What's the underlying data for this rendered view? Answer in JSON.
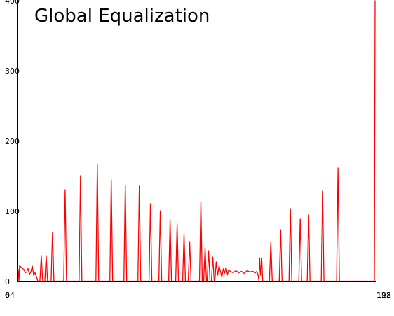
{
  "chart_data": {
    "type": "line",
    "title": "Global Equalization",
    "xlabel": "",
    "ylabel": "",
    "xlim": [
      0,
      256
    ],
    "ylim": [
      0,
      400
    ],
    "y_ticks": [
      0,
      100,
      200,
      300,
      400
    ],
    "x_tick_labels": [
      "0",
      "64",
      "128",
      "192"
    ],
    "grid": false,
    "axis_color": "#000000",
    "series": [
      {
        "color": "#ff0000",
        "points": [
          [
            0,
            0
          ],
          [
            0.5,
            17
          ],
          [
            1,
            0
          ],
          [
            1.5,
            22
          ],
          [
            3,
            19
          ],
          [
            4.5,
            17
          ],
          [
            5.5,
            12
          ],
          [
            6.5,
            13
          ],
          [
            7.5,
            18
          ],
          [
            8.5,
            10
          ],
          [
            9.5,
            13
          ],
          [
            10.5,
            22
          ],
          [
            11.5,
            9
          ],
          [
            12.5,
            12
          ],
          [
            13.5,
            7
          ],
          [
            14.5,
            0
          ],
          [
            16,
            0
          ],
          [
            17,
            37
          ],
          [
            18,
            0
          ],
          [
            19.5,
            0
          ],
          [
            20.5,
            37
          ],
          [
            21.5,
            0
          ],
          [
            24,
            0
          ],
          [
            25,
            70
          ],
          [
            26,
            0
          ],
          [
            33,
            0
          ],
          [
            34,
            131
          ],
          [
            35,
            0
          ],
          [
            44,
            0
          ],
          [
            45,
            151
          ],
          [
            46,
            0
          ],
          [
            56,
            0
          ],
          [
            57,
            167
          ],
          [
            58,
            0
          ],
          [
            66,
            0
          ],
          [
            67,
            145
          ],
          [
            68,
            0
          ],
          [
            76,
            0
          ],
          [
            77,
            137
          ],
          [
            78,
            0
          ],
          [
            86,
            0
          ],
          [
            87,
            136
          ],
          [
            88,
            0
          ],
          [
            94,
            0
          ],
          [
            95,
            111
          ],
          [
            96,
            0
          ],
          [
            101,
            0
          ],
          [
            102,
            101
          ],
          [
            103,
            0
          ],
          [
            108,
            0
          ],
          [
            109,
            88
          ],
          [
            110,
            0
          ],
          [
            113,
            0
          ],
          [
            114,
            82
          ],
          [
            115,
            0
          ],
          [
            118,
            0
          ],
          [
            119,
            68
          ],
          [
            120,
            0
          ],
          [
            122,
            0
          ],
          [
            123,
            57
          ],
          [
            124,
            0
          ],
          [
            130,
            0
          ],
          [
            131,
            114
          ],
          [
            132,
            0
          ],
          [
            133,
            0
          ],
          [
            134,
            48
          ],
          [
            135,
            0
          ],
          [
            135.5,
            0
          ],
          [
            136.5,
            44
          ],
          [
            137.5,
            0
          ],
          [
            138.5,
            0
          ],
          [
            139.5,
            35
          ],
          [
            140.5,
            0
          ],
          [
            141,
            0
          ],
          [
            142,
            28
          ],
          [
            143,
            8
          ],
          [
            144,
            22
          ],
          [
            145,
            14
          ],
          [
            146,
            6
          ],
          [
            147,
            17
          ],
          [
            148,
            12
          ],
          [
            149,
            20
          ],
          [
            150,
            10
          ],
          [
            151,
            16
          ],
          [
            152,
            14
          ],
          [
            154,
            12
          ],
          [
            156,
            15
          ],
          [
            158,
            12
          ],
          [
            160,
            14
          ],
          [
            162,
            11
          ],
          [
            164,
            15
          ],
          [
            166,
            13
          ],
          [
            168,
            14
          ],
          [
            170,
            12
          ],
          [
            171,
            14
          ],
          [
            172,
            8
          ],
          [
            172.5,
            0
          ],
          [
            173,
            34
          ],
          [
            173.7,
            8
          ],
          [
            174.5,
            33
          ],
          [
            175.2,
            0
          ],
          [
            180,
            0
          ],
          [
            181,
            57
          ],
          [
            182,
            0
          ],
          [
            187,
            0
          ],
          [
            188,
            74
          ],
          [
            189,
            0
          ],
          [
            194,
            0
          ],
          [
            195,
            104
          ],
          [
            196,
            0
          ],
          [
            201,
            0
          ],
          [
            202,
            89
          ],
          [
            203,
            0
          ],
          [
            207,
            0
          ],
          [
            208,
            95
          ],
          [
            209,
            0
          ],
          [
            217,
            0
          ],
          [
            218,
            129
          ],
          [
            219,
            0
          ],
          [
            228,
            0
          ],
          [
            229,
            162
          ],
          [
            230,
            0
          ],
          [
            255,
            0
          ],
          [
            255.5,
            400
          ]
        ]
      }
    ]
  }
}
